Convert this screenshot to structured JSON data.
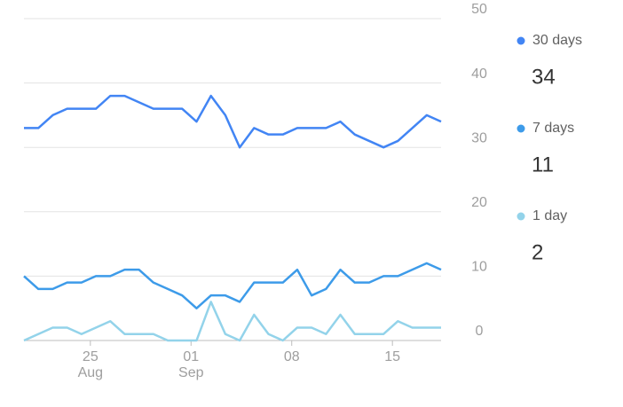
{
  "chart_data": {
    "type": "line",
    "categories": [
      null,
      null,
      null,
      null,
      "25",
      null,
      null,
      null,
      null,
      null,
      null,
      "01",
      null,
      null,
      null,
      null,
      null,
      null,
      "08",
      null,
      null,
      null,
      null,
      null,
      null,
      "15",
      null,
      null,
      null,
      null
    ],
    "x_sublabels": [
      null,
      null,
      null,
      null,
      "Aug",
      null,
      null,
      null,
      null,
      null,
      null,
      "Sep",
      null,
      null,
      null,
      null,
      null,
      null,
      null,
      null,
      null,
      null,
      null,
      null,
      null,
      null,
      null,
      null,
      null,
      null
    ],
    "series": [
      {
        "name": "30 days",
        "color": "#4285f4",
        "values": [
          33,
          33,
          35,
          36,
          36,
          36,
          38,
          38,
          37,
          36,
          36,
          36,
          34,
          38,
          35,
          30,
          33,
          32,
          32,
          33,
          33,
          33,
          34,
          32,
          31,
          30,
          31,
          33,
          35,
          34
        ]
      },
      {
        "name": "7 days",
        "color": "#3d9be9",
        "values": [
          10,
          8,
          8,
          9,
          9,
          10,
          10,
          11,
          11,
          9,
          8,
          7,
          5,
          7,
          7,
          6,
          9,
          9,
          9,
          11,
          7,
          8,
          11,
          9,
          9,
          10,
          10,
          11,
          12,
          11
        ]
      },
      {
        "name": "1 day",
        "color": "#93d3ea",
        "values": [
          0,
          1,
          2,
          2,
          1,
          2,
          3,
          1,
          1,
          1,
          0,
          0,
          0,
          6,
          1,
          0,
          4,
          1,
          0,
          2,
          2,
          1,
          4,
          1,
          1,
          1,
          3,
          2,
          2,
          2
        ]
      }
    ],
    "ylim": [
      0,
      50
    ],
    "yticks": [
      0,
      10,
      20,
      30,
      40,
      50
    ],
    "grid": true
  }
}
